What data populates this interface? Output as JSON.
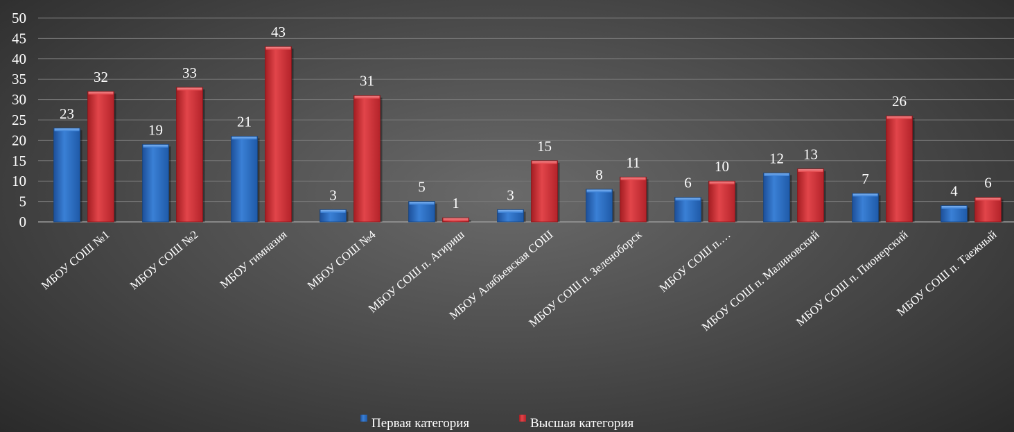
{
  "chart_data": {
    "type": "bar",
    "categories": [
      "МБОУ СОШ №1",
      "МБОУ СОШ №2",
      "МБОУ гимназия",
      "МБОУ СОШ №4",
      "МБОУ СОШ п. Агириш",
      "МБОУ Алябьевская СОШ",
      "МБОУ СОШ п. Зеленоборск",
      "МБОУ СОШ п.…",
      "МБОУ СОШ п. Малиновский",
      "МБОУ СОШ п. Пионерский",
      "МБОУ СОШ п. Таежный"
    ],
    "series": [
      {
        "name": "Первая категория",
        "color": "#2f6fc4",
        "values": [
          23,
          19,
          21,
          3,
          5,
          3,
          8,
          6,
          12,
          7,
          4
        ]
      },
      {
        "name": "Высшая категория",
        "color": "#d23236",
        "values": [
          32,
          33,
          43,
          31,
          1,
          15,
          11,
          10,
          13,
          26,
          6
        ]
      }
    ],
    "ylim": [
      0,
      50
    ],
    "yticks": [
      0,
      5,
      10,
      15,
      20,
      25,
      30,
      35,
      40,
      45,
      50
    ],
    "grid": true,
    "legend_position": "bottom",
    "data_labels": true
  }
}
